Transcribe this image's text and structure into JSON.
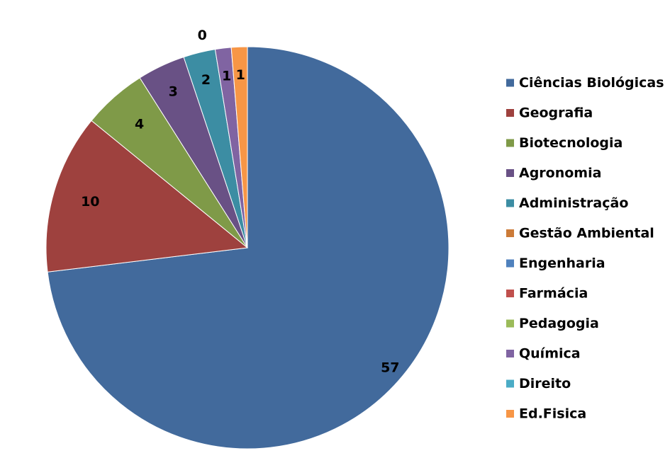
{
  "chart_data": {
    "type": "pie",
    "title": "",
    "categories": [
      "Ciências Biológicas",
      "Geografia",
      "Biotecnologia",
      "Agronomia",
      "Administração",
      "Gestão Ambiental",
      "Engenharia",
      "Farmácia",
      "Pedagogia",
      "Química",
      "Direito",
      "Ed.Fisica"
    ],
    "values": [
      57,
      10,
      4,
      3,
      2,
      0,
      0,
      0,
      0,
      1,
      0,
      1
    ],
    "data_labels": [
      "57",
      "10",
      "4",
      "3",
      "2",
      "0",
      "",
      "",
      "",
      "1",
      "",
      "1"
    ],
    "colors": [
      "#426A9C",
      "#9E413E",
      "#7F9A48",
      "#695185",
      "#3C8DA3",
      "#CC7B38",
      "#4F81BD",
      "#C0504D",
      "#9BBB59",
      "#8064A2",
      "#4BACC6",
      "#F79646"
    ],
    "legend_position": "right",
    "start_angle": "12 o'clock",
    "direction": "clockwise"
  }
}
